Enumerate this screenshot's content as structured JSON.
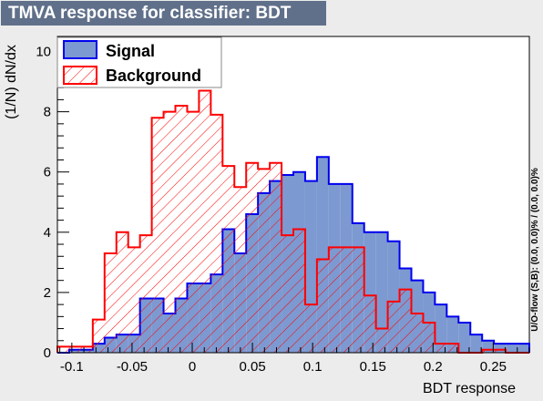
{
  "title": "TMVA response for classifier: BDT",
  "colors": {
    "title_bg": "#60708a",
    "signal_fill": "#7d99d1",
    "signal_line": "#0000ee",
    "background_line": "#ff0000"
  },
  "chart_data": {
    "type": "histogram",
    "xlabel": "BDT response",
    "ylabel": "(1/N) dN/dx",
    "side_label": "U/O-flow (S,B): (0.0, 0.0)% / (0.0, 0.0)%",
    "xlim": [
      -0.112,
      0.28
    ],
    "ylim": [
      0,
      10.5
    ],
    "x_ticks": [
      -0.1,
      -0.05,
      0,
      0.05,
      0.1,
      0.15,
      0.2,
      0.25
    ],
    "x_tick_labels": [
      "-0.1",
      "-0.05",
      "0",
      "0.05",
      "0.1",
      "0.15",
      "0.2",
      "0.25"
    ],
    "y_ticks": [
      0,
      2,
      4,
      6,
      8,
      10
    ],
    "y_tick_labels": [
      "0",
      "2",
      "4",
      "6",
      "8",
      "10"
    ],
    "legend_position": "top-left",
    "bin_edges": [
      -0.112,
      -0.1022,
      -0.0924,
      -0.0826,
      -0.0728,
      -0.063,
      -0.0532,
      -0.0434,
      -0.0336,
      -0.0238,
      -0.014,
      -0.0042,
      0.0056,
      0.0154,
      0.0252,
      0.035,
      0.0448,
      0.0546,
      0.0644,
      0.0742,
      0.084,
      0.0938,
      0.1036,
      0.1134,
      0.1232,
      0.133,
      0.1428,
      0.1526,
      0.1624,
      0.1722,
      0.182,
      0.1918,
      0.2016,
      0.2114,
      0.2212,
      0.231,
      0.2408,
      0.2506,
      0.2604,
      0.2702,
      0.28
    ],
    "series": [
      {
        "name": "Signal",
        "values": [
          0.0,
          0.1,
          0.1,
          0.3,
          0.5,
          0.6,
          0.6,
          1.8,
          1.8,
          1.3,
          1.8,
          2.3,
          2.3,
          2.6,
          4.1,
          3.3,
          4.6,
          5.3,
          5.7,
          5.9,
          6.0,
          5.7,
          6.5,
          5.6,
          5.6,
          4.3,
          4.0,
          4.0,
          3.7,
          2.8,
          2.4,
          2.0,
          1.6,
          1.2,
          1.0,
          0.6,
          0.4,
          0.3,
          0.3,
          0.3
        ]
      },
      {
        "name": "Background",
        "values": [
          0.2,
          0.2,
          0.2,
          1.1,
          3.3,
          4.0,
          3.5,
          3.9,
          7.8,
          8.0,
          8.2,
          8.0,
          8.7,
          7.9,
          6.2,
          5.5,
          6.3,
          6.1,
          6.3,
          3.9,
          4.1,
          1.6,
          3.1,
          3.5,
          3.5,
          3.5,
          1.9,
          0.8,
          1.7,
          2.1,
          1.3,
          1.0,
          0.3,
          0.3,
          0.0,
          0.0,
          0.1,
          0.1,
          0.0,
          0.0
        ]
      }
    ]
  }
}
